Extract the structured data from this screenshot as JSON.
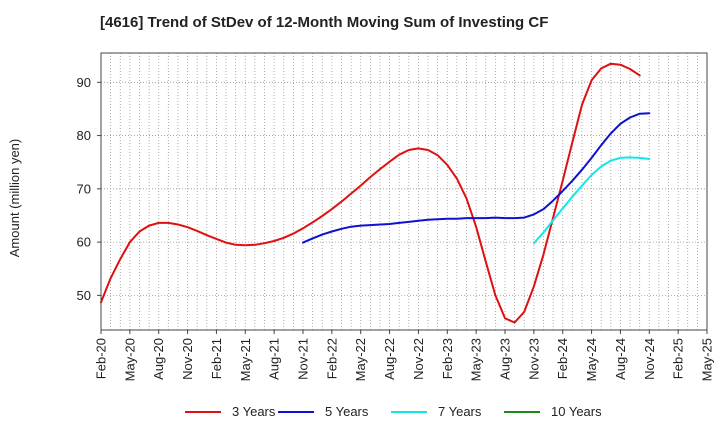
{
  "chart_data": {
    "type": "line",
    "title": "[4616]  Trend of StDev of 12-Month Moving Sum of Investing CF",
    "xlabel": "",
    "ylabel": "Amount (million yen)",
    "ylim": [
      43.5,
      95.5
    ],
    "yticks": [
      50,
      60,
      70,
      80,
      90
    ],
    "xlim": [
      "2020-02",
      "2025-05"
    ],
    "xtick_labels": [
      "Feb-20",
      "May-20",
      "Aug-20",
      "Nov-20",
      "Feb-21",
      "May-21",
      "Aug-21",
      "Nov-21",
      "Feb-22",
      "May-22",
      "Aug-22",
      "Nov-22",
      "Feb-23",
      "May-23",
      "Aug-23",
      "Nov-23",
      "Feb-24",
      "May-24",
      "Aug-24",
      "Nov-24",
      "Feb-25",
      "May-25"
    ],
    "grid": true,
    "legend_position": "bottom",
    "series": [
      {
        "name": "3 Years",
        "color": "#e01010",
        "x": [
          "2020-02",
          "2020-03",
          "2020-04",
          "2020-05",
          "2020-06",
          "2020-07",
          "2020-08",
          "2020-09",
          "2020-10",
          "2020-11",
          "2020-12",
          "2021-01",
          "2021-02",
          "2021-03",
          "2021-04",
          "2021-05",
          "2021-06",
          "2021-07",
          "2021-08",
          "2021-09",
          "2021-10",
          "2021-11",
          "2021-12",
          "2022-01",
          "2022-02",
          "2022-03",
          "2022-04",
          "2022-05",
          "2022-06",
          "2022-07",
          "2022-08",
          "2022-09",
          "2022-10",
          "2022-11",
          "2022-12",
          "2023-01",
          "2023-02",
          "2023-03",
          "2023-04",
          "2023-05",
          "2023-06",
          "2023-07",
          "2023-08",
          "2023-09",
          "2023-10",
          "2023-11",
          "2023-12",
          "2024-01",
          "2024-02",
          "2024-03",
          "2024-04",
          "2024-05",
          "2024-06",
          "2024-07",
          "2024-08",
          "2024-09",
          "2024-10",
          "2024-11"
        ],
        "values": [
          48.7,
          53.2,
          56.8,
          60.0,
          62.0,
          63.1,
          63.6,
          63.6,
          63.3,
          62.8,
          62.1,
          61.3,
          60.6,
          59.9,
          59.5,
          59.4,
          59.5,
          59.8,
          60.2,
          60.8,
          61.6,
          62.6,
          63.7,
          64.9,
          66.2,
          67.6,
          69.1,
          70.6,
          72.2,
          73.7,
          75.1,
          76.4,
          77.3,
          77.6,
          77.3,
          76.3,
          74.5,
          71.9,
          68.2,
          62.9,
          56.3,
          50.0,
          45.7,
          44.9,
          46.9,
          51.7,
          57.7,
          64.6,
          71.5,
          78.7,
          85.8,
          90.4,
          92.6,
          93.5,
          93.3,
          92.5,
          91.3,
          null
        ]
      },
      {
        "name": "5 Years",
        "color": "#1010d0",
        "x": [
          "2021-11",
          "2021-12",
          "2022-01",
          "2022-02",
          "2022-03",
          "2022-04",
          "2022-05",
          "2022-06",
          "2022-07",
          "2022-08",
          "2022-09",
          "2022-10",
          "2022-11",
          "2022-12",
          "2023-01",
          "2023-02",
          "2023-03",
          "2023-04",
          "2023-05",
          "2023-06",
          "2023-07",
          "2023-08",
          "2023-09",
          "2023-10",
          "2023-11",
          "2023-12",
          "2024-01",
          "2024-02",
          "2024-03",
          "2024-04",
          "2024-05",
          "2024-06",
          "2024-07",
          "2024-08",
          "2024-09",
          "2024-10",
          "2024-11"
        ],
        "values": [
          59.9,
          60.7,
          61.4,
          62.0,
          62.5,
          62.9,
          63.1,
          63.2,
          63.3,
          63.4,
          63.6,
          63.8,
          64.0,
          64.2,
          64.3,
          64.4,
          64.4,
          64.5,
          64.5,
          64.5,
          64.6,
          64.5,
          64.5,
          64.6,
          65.2,
          66.2,
          67.8,
          69.6,
          71.5,
          73.6,
          75.8,
          78.2,
          80.4,
          82.2,
          83.4,
          84.1,
          84.2
        ]
      },
      {
        "name": "7 Years",
        "color": "#10e8e8",
        "x": [
          "2023-11",
          "2023-12",
          "2024-01",
          "2024-02",
          "2024-03",
          "2024-04",
          "2024-05",
          "2024-06",
          "2024-07",
          "2024-08",
          "2024-09",
          "2024-10",
          "2024-11"
        ],
        "values": [
          59.8,
          61.8,
          64.1,
          66.3,
          68.5,
          70.6,
          72.6,
          74.2,
          75.3,
          75.8,
          75.9,
          75.8,
          75.6
        ]
      },
      {
        "name": "10 Years",
        "color": "#1a8a1a",
        "x": [],
        "values": []
      }
    ]
  }
}
